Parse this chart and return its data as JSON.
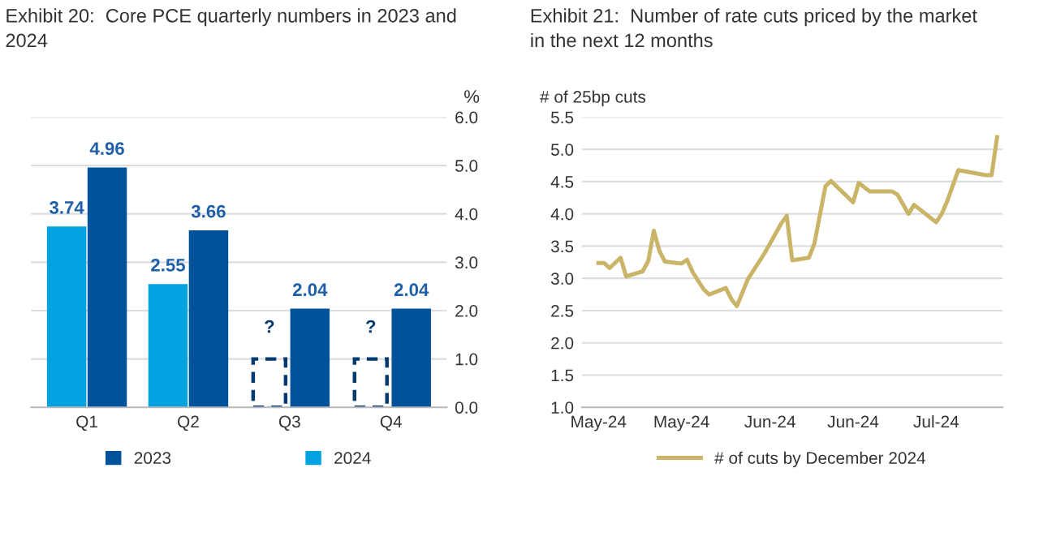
{
  "chart_data": [
    {
      "type": "bar",
      "title": "Exhibit 20:  Core PCE quarterly numbers in 2023 and\n2024",
      "ylabel": "%",
      "categories": [
        "Q1",
        "Q2",
        "Q3",
        "Q4"
      ],
      "series": [
        {
          "name": "2024",
          "color": "#00a3e0",
          "values": [
            3.74,
            2.55,
            null,
            null
          ],
          "value_labels": [
            "3.74",
            "2.55",
            null,
            null
          ]
        },
        {
          "color": "#003a70",
          "line_style": "dashed",
          "values": [
            null,
            null,
            1.0,
            1.0
          ],
          "value_labels": [
            null,
            null,
            "?",
            "?"
          ]
        },
        {
          "name": "2023",
          "color": "#00539b",
          "values": [
            4.96,
            3.66,
            2.04,
            2.04
          ],
          "value_labels": [
            "4.96",
            "3.66",
            "2.04",
            "2.04"
          ]
        }
      ],
      "ylim": [
        0,
        6
      ],
      "yticks": [
        {
          "value": 0,
          "label": "0.0"
        },
        {
          "value": 1,
          "label": "1.0"
        },
        {
          "value": 2,
          "label": "2.0"
        },
        {
          "value": 3,
          "label": "3.0"
        },
        {
          "value": 4,
          "label": "4.0"
        },
        {
          "value": 5,
          "label": "5.0"
        },
        {
          "value": 6,
          "label": "6.0"
        }
      ],
      "grid": "y",
      "legend": "bottom"
    },
    {
      "type": "line",
      "title": "Exhibit 21:  Number of rate cuts priced by the market\nin the next 12 months",
      "ylabel": "# of 25bp cuts",
      "x": [
        "2024-05-01",
        "2024-05-02",
        "2024-05-03",
        "2024-05-05",
        "2024-05-06",
        "2024-05-09",
        "2024-05-10",
        "2024-05-11",
        "2024-05-12",
        "2024-05-13",
        "2024-05-16",
        "2024-05-17",
        "2024-05-18",
        "2024-05-20",
        "2024-05-21",
        "2024-05-24",
        "2024-05-25",
        "2024-05-26",
        "2024-05-28",
        "2024-05-31",
        "2024-06-03",
        "2024-06-04",
        "2024-06-05",
        "2024-06-08",
        "2024-06-09",
        "2024-06-11",
        "2024-06-12",
        "2024-06-16",
        "2024-06-17",
        "2024-06-19",
        "2024-06-23",
        "2024-06-24",
        "2024-06-26",
        "2024-06-27",
        "2024-07-01",
        "2024-07-02",
        "2024-07-03",
        "2024-07-05",
        "2024-07-10",
        "2024-07-11",
        "2024-07-12"
      ],
      "series": [
        {
          "name": "# of cuts by December 2024",
          "color": "#c9b468",
          "values": [
            3.24,
            3.24,
            3.16,
            3.32,
            3.03,
            3.11,
            3.27,
            3.74,
            3.43,
            3.26,
            3.23,
            3.29,
            3.1,
            2.83,
            2.75,
            2.85,
            2.68,
            2.57,
            2.99,
            3.39,
            3.85,
            3.97,
            3.28,
            3.32,
            3.54,
            4.43,
            4.51,
            4.18,
            4.48,
            4.35,
            4.35,
            4.3,
            4.0,
            4.14,
            3.87,
            4.0,
            4.2,
            4.68,
            4.6,
            4.6,
            5.19
          ]
        }
      ],
      "xlim": [
        "2024-04-28",
        "2024-07-13"
      ],
      "xticks": [
        {
          "value": "2024-05-01",
          "label": "May-24"
        },
        {
          "value": "2024-05-16",
          "label": "May-24"
        },
        {
          "value": "2024-06-01",
          "label": "Jun-24"
        },
        {
          "value": "2024-06-16",
          "label": "Jun-24"
        },
        {
          "value": "2024-07-01",
          "label": "Jul-24"
        }
      ],
      "ylim": [
        1,
        5.5
      ],
      "yticks": [
        {
          "value": 1,
          "label": "1.0"
        },
        {
          "value": 1.5,
          "label": "1.5"
        },
        {
          "value": 2,
          "label": "2.0"
        },
        {
          "value": 2.5,
          "label": "2.5"
        },
        {
          "value": 3,
          "label": "3.0"
        },
        {
          "value": 3.5,
          "label": "3.5"
        },
        {
          "value": 4,
          "label": "4.0"
        },
        {
          "value": 4.5,
          "label": "4.5"
        },
        {
          "value": 5,
          "label": "5.0"
        },
        {
          "value": 5.5,
          "label": "5.5"
        }
      ],
      "grid": "y",
      "legend": "bottom"
    }
  ]
}
